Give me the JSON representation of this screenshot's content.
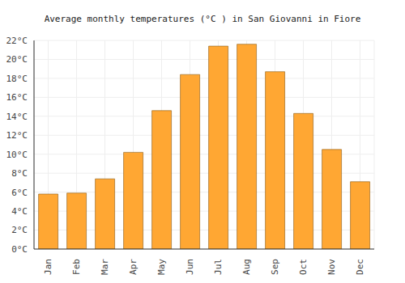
{
  "chart_data": {
    "type": "bar",
    "title": "Average monthly temperatures (°C ) in San Giovanni in Fiore",
    "categories": [
      "Jan",
      "Feb",
      "Mar",
      "Apr",
      "May",
      "Jun",
      "Jul",
      "Aug",
      "Sep",
      "Oct",
      "Nov",
      "Dec"
    ],
    "values": [
      5.8,
      5.9,
      7.4,
      10.2,
      14.6,
      18.4,
      21.4,
      21.6,
      18.7,
      14.3,
      10.5,
      7.1
    ],
    "color": "#ffa733",
    "ylim": [
      0,
      22
    ],
    "yticks": [
      {
        "value": 0,
        "label": "0°C"
      },
      {
        "value": 2,
        "label": "2°C"
      },
      {
        "value": 4,
        "label": "4°C"
      },
      {
        "value": 6,
        "label": "6°C"
      },
      {
        "value": 8,
        "label": "8°C"
      },
      {
        "value": 10,
        "label": "10°C"
      },
      {
        "value": 12,
        "label": "12°C"
      },
      {
        "value": 14,
        "label": "14°C"
      },
      {
        "value": 16,
        "label": "16°C"
      },
      {
        "value": 18,
        "label": "18°C"
      },
      {
        "value": 20,
        "label": "20°C"
      },
      {
        "value": 22,
        "label": "22°C"
      }
    ],
    "grid": true
  }
}
